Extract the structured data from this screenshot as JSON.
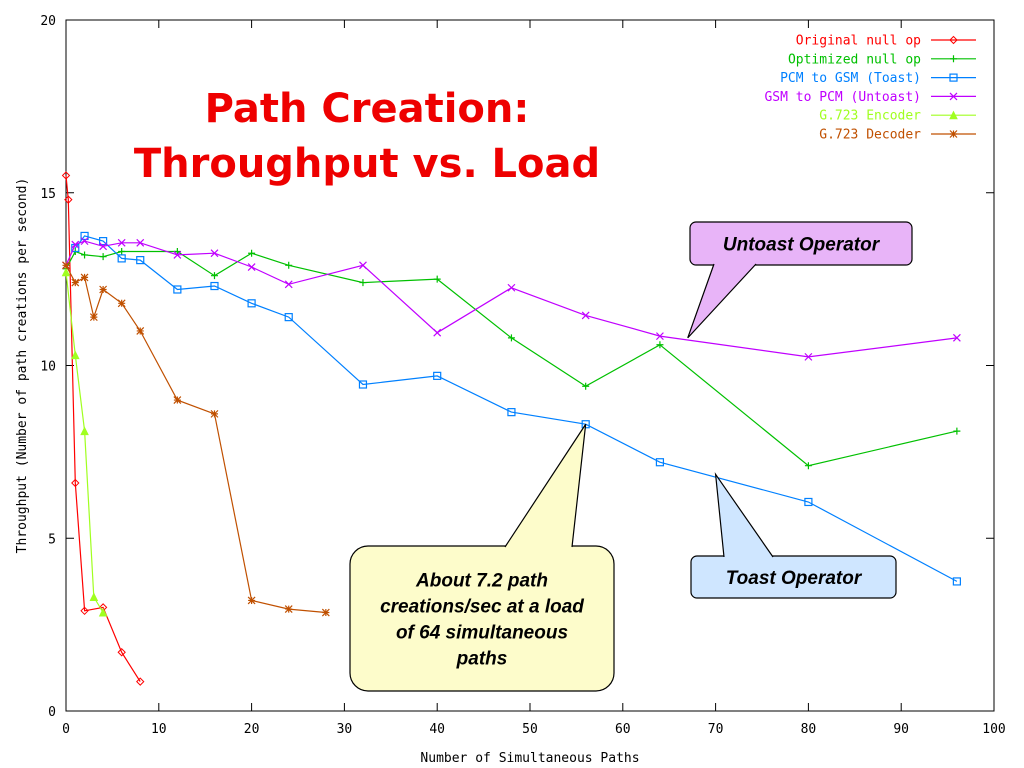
{
  "chart_data": {
    "type": "line",
    "title": "Path Creation:\nThroughput vs. Load",
    "xlabel": "Number of Simultaneous Paths",
    "ylabel": "Throughput (Number of path creations per second)",
    "xlim": [
      0,
      100
    ],
    "ylim": [
      0,
      20
    ],
    "xticks": [
      "0",
      "10",
      "20",
      "30",
      "40",
      "50",
      "60",
      "70",
      "80",
      "90",
      "100"
    ],
    "yticks": [
      "0",
      "5",
      "10",
      "15",
      "20"
    ],
    "grid": false,
    "legend_position": "top-right",
    "series": [
      {
        "name": "Original null op",
        "color": "#ff0000",
        "marker": "diamond",
        "points": [
          [
            0,
            15.5
          ],
          [
            0.25,
            14.8
          ],
          [
            1,
            6.6
          ],
          [
            2,
            2.9
          ],
          [
            4,
            3.0
          ],
          [
            6,
            1.7
          ],
          [
            8,
            0.85
          ]
        ]
      },
      {
        "name": "Optimized null op",
        "color": "#00c000",
        "marker": "plus",
        "points": [
          [
            0,
            12.8
          ],
          [
            1,
            13.3
          ],
          [
            2,
            13.2
          ],
          [
            4,
            13.15
          ],
          [
            6,
            13.3
          ],
          [
            12,
            13.3
          ],
          [
            16,
            12.6
          ],
          [
            20,
            13.25
          ],
          [
            24,
            12.9
          ],
          [
            32,
            12.4
          ],
          [
            40,
            12.5
          ],
          [
            48,
            10.8
          ],
          [
            56,
            9.4
          ],
          [
            64,
            10.6
          ],
          [
            80,
            7.1
          ],
          [
            96,
            8.1
          ]
        ]
      },
      {
        "name": "PCM to GSM (Toast)",
        "color": "#0080ff",
        "marker": "square",
        "points": [
          [
            1,
            13.4
          ],
          [
            2,
            13.75
          ],
          [
            4,
            13.6
          ],
          [
            6,
            13.1
          ],
          [
            8,
            13.05
          ],
          [
            12,
            12.2
          ],
          [
            16,
            12.3
          ],
          [
            20,
            11.8
          ],
          [
            24,
            11.4
          ],
          [
            32,
            9.45
          ],
          [
            40,
            9.7
          ],
          [
            48,
            8.65
          ],
          [
            56,
            8.3
          ],
          [
            64,
            7.2
          ],
          [
            80,
            6.05
          ],
          [
            96,
            3.75
          ]
        ]
      },
      {
        "name": "GSM to PCM (Untoast)",
        "color": "#c000ff",
        "marker": "x",
        "points": [
          [
            0,
            12.9
          ],
          [
            1,
            13.5
          ],
          [
            2,
            13.6
          ],
          [
            4,
            13.45
          ],
          [
            6,
            13.55
          ],
          [
            8,
            13.55
          ],
          [
            12,
            13.2
          ],
          [
            16,
            13.25
          ],
          [
            20,
            12.85
          ],
          [
            24,
            12.35
          ],
          [
            32,
            12.9
          ],
          [
            40,
            10.95
          ],
          [
            48,
            12.25
          ],
          [
            56,
            11.45
          ],
          [
            64,
            10.85
          ],
          [
            80,
            10.25
          ],
          [
            96,
            10.8
          ]
        ]
      },
      {
        "name": "G.723 Encoder",
        "color": "#a0ff20",
        "marker": "triangle",
        "points": [
          [
            0,
            12.7
          ],
          [
            1,
            10.3
          ],
          [
            2,
            8.1
          ],
          [
            3,
            3.3
          ],
          [
            4,
            2.85
          ]
        ]
      },
      {
        "name": "G.723 Decoder",
        "color": "#c05000",
        "marker": "star",
        "points": [
          [
            0,
            12.9
          ],
          [
            1,
            12.4
          ],
          [
            2,
            12.55
          ],
          [
            3,
            11.4
          ],
          [
            4,
            12.2
          ],
          [
            6,
            11.8
          ],
          [
            8,
            11.0
          ],
          [
            12,
            9.0
          ],
          [
            16,
            8.6
          ],
          [
            20,
            3.2
          ],
          [
            24,
            2.95
          ],
          [
            28,
            2.85
          ]
        ]
      }
    ],
    "annotations": [
      {
        "text": "Untoast Operator",
        "fill": "#e8b4f8",
        "points_to": [
          67,
          10.8
        ]
      },
      {
        "text": "Toast Operator",
        "fill": "#cfe6ff",
        "points_to": [
          70,
          6.85
        ]
      },
      {
        "text": "About 7.2 path\ncreations/sec at a load\nof 64 simultaneous\npaths",
        "fill": "#fdfccb",
        "points_to": [
          56,
          8.3
        ]
      }
    ]
  }
}
